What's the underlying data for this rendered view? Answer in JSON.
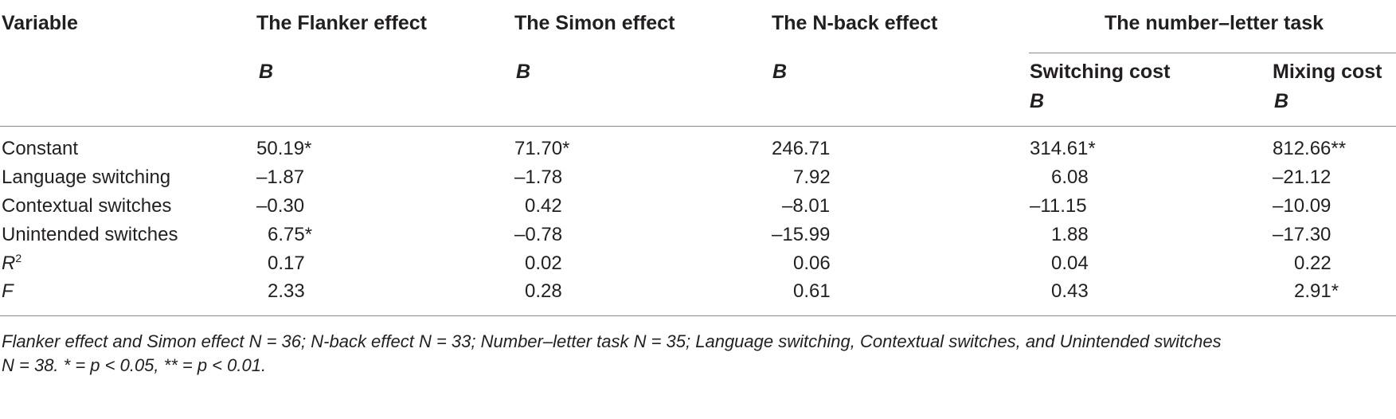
{
  "table": {
    "headers": {
      "variable": "Variable",
      "flanker": "The Flanker effect",
      "simon": "The Simon effect",
      "nback": "The N-back effect",
      "number_letter": "The number–letter task",
      "switching_cost": "Switching cost",
      "mixing_cost": "Mixing cost",
      "b": "B"
    },
    "rows": [
      {
        "label": "Constant",
        "label_sup": "",
        "values": [
          "50.19*",
          "71.70*",
          "246.71",
          "314.61*",
          "812.66**"
        ]
      },
      {
        "label": "Language switching",
        "label_sup": "",
        "values": [
          "–1.87",
          "–1.78",
          "7.92",
          "6.08",
          "–21.12"
        ]
      },
      {
        "label": "Contextual switches",
        "label_sup": "",
        "values": [
          "–0.30",
          "0.42",
          "–8.01",
          "–11.15",
          "–10.09"
        ]
      },
      {
        "label": "Unintended switches",
        "label_sup": "",
        "values": [
          "6.75*",
          "–0.78",
          "–15.99",
          "1.88",
          "–17.30"
        ]
      },
      {
        "label": "R",
        "label_sup": "2",
        "values": [
          "0.17",
          "0.02",
          "0.06",
          "0.04",
          "0.22"
        ]
      },
      {
        "label": "F",
        "label_sup": "",
        "values": [
          "2.33",
          "0.28",
          "0.61",
          "0.43",
          "2.91*"
        ]
      }
    ],
    "footnote_line1": "Flanker effect and Simon effect N = 36; N-back effect N = 33; Number–letter task N = 35; Language switching, Contextual switches, and Unintended switches",
    "footnote_line2": "N = 38. * = p < 0.05, ** = p < 0.01."
  }
}
